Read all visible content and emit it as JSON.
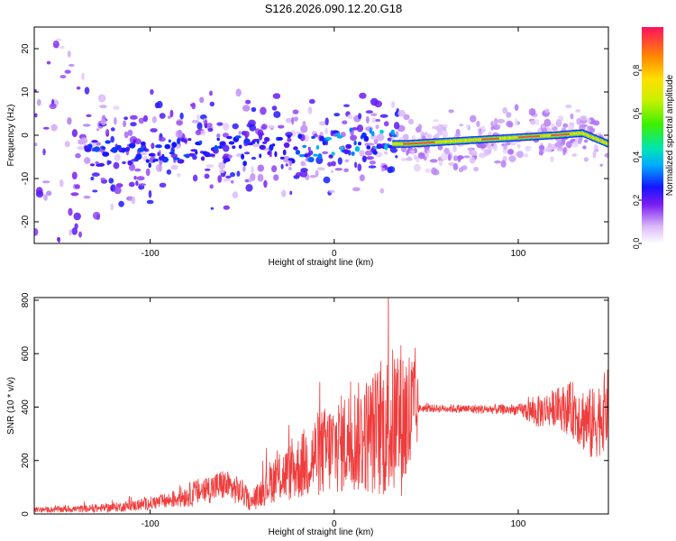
{
  "figure": {
    "title": "S126.2026.090.12.20.G18"
  },
  "chart_data": [
    {
      "type": "heatmap",
      "panel": "spectrogram",
      "xlabel": "Height of straight line (km)",
      "ylabel": "Frequency (Hz)",
      "xlim": [
        -163,
        149
      ],
      "ylim": [
        -25,
        25
      ],
      "xticks": [
        -100,
        0,
        100
      ],
      "yticks": [
        -20,
        -10,
        0,
        10,
        20
      ],
      "colorbar": {
        "label": "Normalized spectral amplitude",
        "range": [
          0.0,
          1.0
        ],
        "ticks": [
          0.0,
          0.2,
          0.4,
          0.6,
          0.8
        ]
      },
      "ridge": [
        {
          "x": -135,
          "y": -4
        },
        {
          "x": -120,
          "y": -4
        },
        {
          "x": -100,
          "y": -4
        },
        {
          "x": -80,
          "y": -3
        },
        {
          "x": -60,
          "y": -3
        },
        {
          "x": -40,
          "y": -4
        },
        {
          "x": -20,
          "y": -3
        },
        {
          "x": 0,
          "y": -2
        },
        {
          "x": 20,
          "y": -1
        },
        {
          "x": 30,
          "y": -2
        },
        {
          "x": 40,
          "y": -2
        },
        {
          "x": 60,
          "y": -1.5
        },
        {
          "x": 80,
          "y": -1
        },
        {
          "x": 100,
          "y": -0.5
        },
        {
          "x": 120,
          "y": 0
        },
        {
          "x": 135,
          "y": 0.5
        },
        {
          "x": 149,
          "y": -2
        }
      ],
      "grid": false
    },
    {
      "type": "line",
      "panel": "snr",
      "xlabel": "Height of straight line (km)",
      "ylabel": "SNR (10 * v/v)",
      "xlim": [
        -163,
        149
      ],
      "ylim": [
        0,
        810
      ],
      "xticks": [
        -100,
        0,
        100
      ],
      "yticks": [
        0,
        200,
        400,
        600,
        800
      ],
      "color": "#f03c3c",
      "envelope": [
        {
          "x": -163,
          "y": 15,
          "amp": 10
        },
        {
          "x": -130,
          "y": 20,
          "amp": 15
        },
        {
          "x": -110,
          "y": 30,
          "amp": 20
        },
        {
          "x": -90,
          "y": 50,
          "amp": 30
        },
        {
          "x": -75,
          "y": 80,
          "amp": 50
        },
        {
          "x": -60,
          "y": 110,
          "amp": 60
        },
        {
          "x": -50,
          "y": 80,
          "amp": 50
        },
        {
          "x": -45,
          "y": 40,
          "amp": 30
        },
        {
          "x": -35,
          "y": 120,
          "amp": 80
        },
        {
          "x": -20,
          "y": 170,
          "amp": 120
        },
        {
          "x": -10,
          "y": 220,
          "amp": 160
        },
        {
          "x": 0,
          "y": 250,
          "amp": 180
        },
        {
          "x": 10,
          "y": 280,
          "amp": 200
        },
        {
          "x": 20,
          "y": 300,
          "amp": 230
        },
        {
          "x": 30,
          "y": 330,
          "amp": 280
        },
        {
          "x": 35,
          "y": 360,
          "amp": 300
        },
        {
          "x": 44,
          "y": 350,
          "amp": 280
        },
        {
          "x": 46,
          "y": 395,
          "amp": 15
        },
        {
          "x": 60,
          "y": 395,
          "amp": 15
        },
        {
          "x": 80,
          "y": 392,
          "amp": 18
        },
        {
          "x": 100,
          "y": 390,
          "amp": 20
        },
        {
          "x": 110,
          "y": 380,
          "amp": 60
        },
        {
          "x": 120,
          "y": 400,
          "amp": 70
        },
        {
          "x": 130,
          "y": 390,
          "amp": 110
        },
        {
          "x": 140,
          "y": 330,
          "amp": 140
        },
        {
          "x": 149,
          "y": 400,
          "amp": 150
        }
      ],
      "grid": false
    }
  ]
}
